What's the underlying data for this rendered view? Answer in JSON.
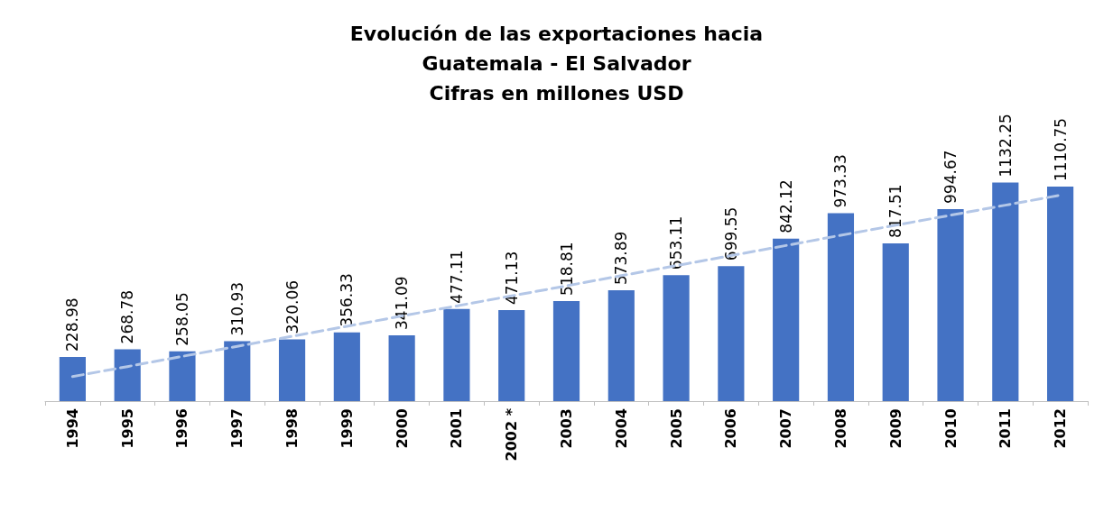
{
  "chart_data": {
    "type": "bar",
    "title": "Evolución de las exportaciones hacia\nGuatemala - El Salvador\nCifras en millones USD",
    "categories": [
      "1994",
      "1995",
      "1996",
      "1997",
      "1998",
      "1999",
      "2000",
      "2001",
      "2002 *",
      "2003",
      "2004",
      "2005",
      "2006",
      "2007",
      "2008",
      "2009",
      "2010",
      "2011",
      "2012"
    ],
    "series": [
      {
        "color": "#4472c4",
        "values": [
          228.98,
          268.78,
          258.05,
          310.93,
          320.06,
          356.33,
          341.09,
          477.11,
          471.13,
          518.81,
          573.89,
          653.11,
          699.55,
          842.12,
          973.33,
          817.51,
          994.67,
          1132.25,
          1110.75
        ],
        "value_labels": [
          "228.98",
          "268.78",
          "258.05",
          "310.93",
          "320.06",
          "356.33",
          "341.09",
          "477.11",
          "471.13",
          "518.81",
          "573.89",
          "653.11",
          "699.55",
          "842.12",
          "973.33",
          "817.51",
          "994.67",
          "1132.25",
          "1110.75"
        ]
      },
      {
        "type": "line",
        "color": "#b4c7e7",
        "line_style": "dashed",
        "marker": "none",
        "values": [
          127,
          179,
          232,
          284,
          336,
          388,
          441,
          493,
          545,
          597,
          650,
          702,
          754,
          806,
          859,
          911,
          963,
          1015,
          1067
        ]
      }
    ],
    "grid": false
  }
}
